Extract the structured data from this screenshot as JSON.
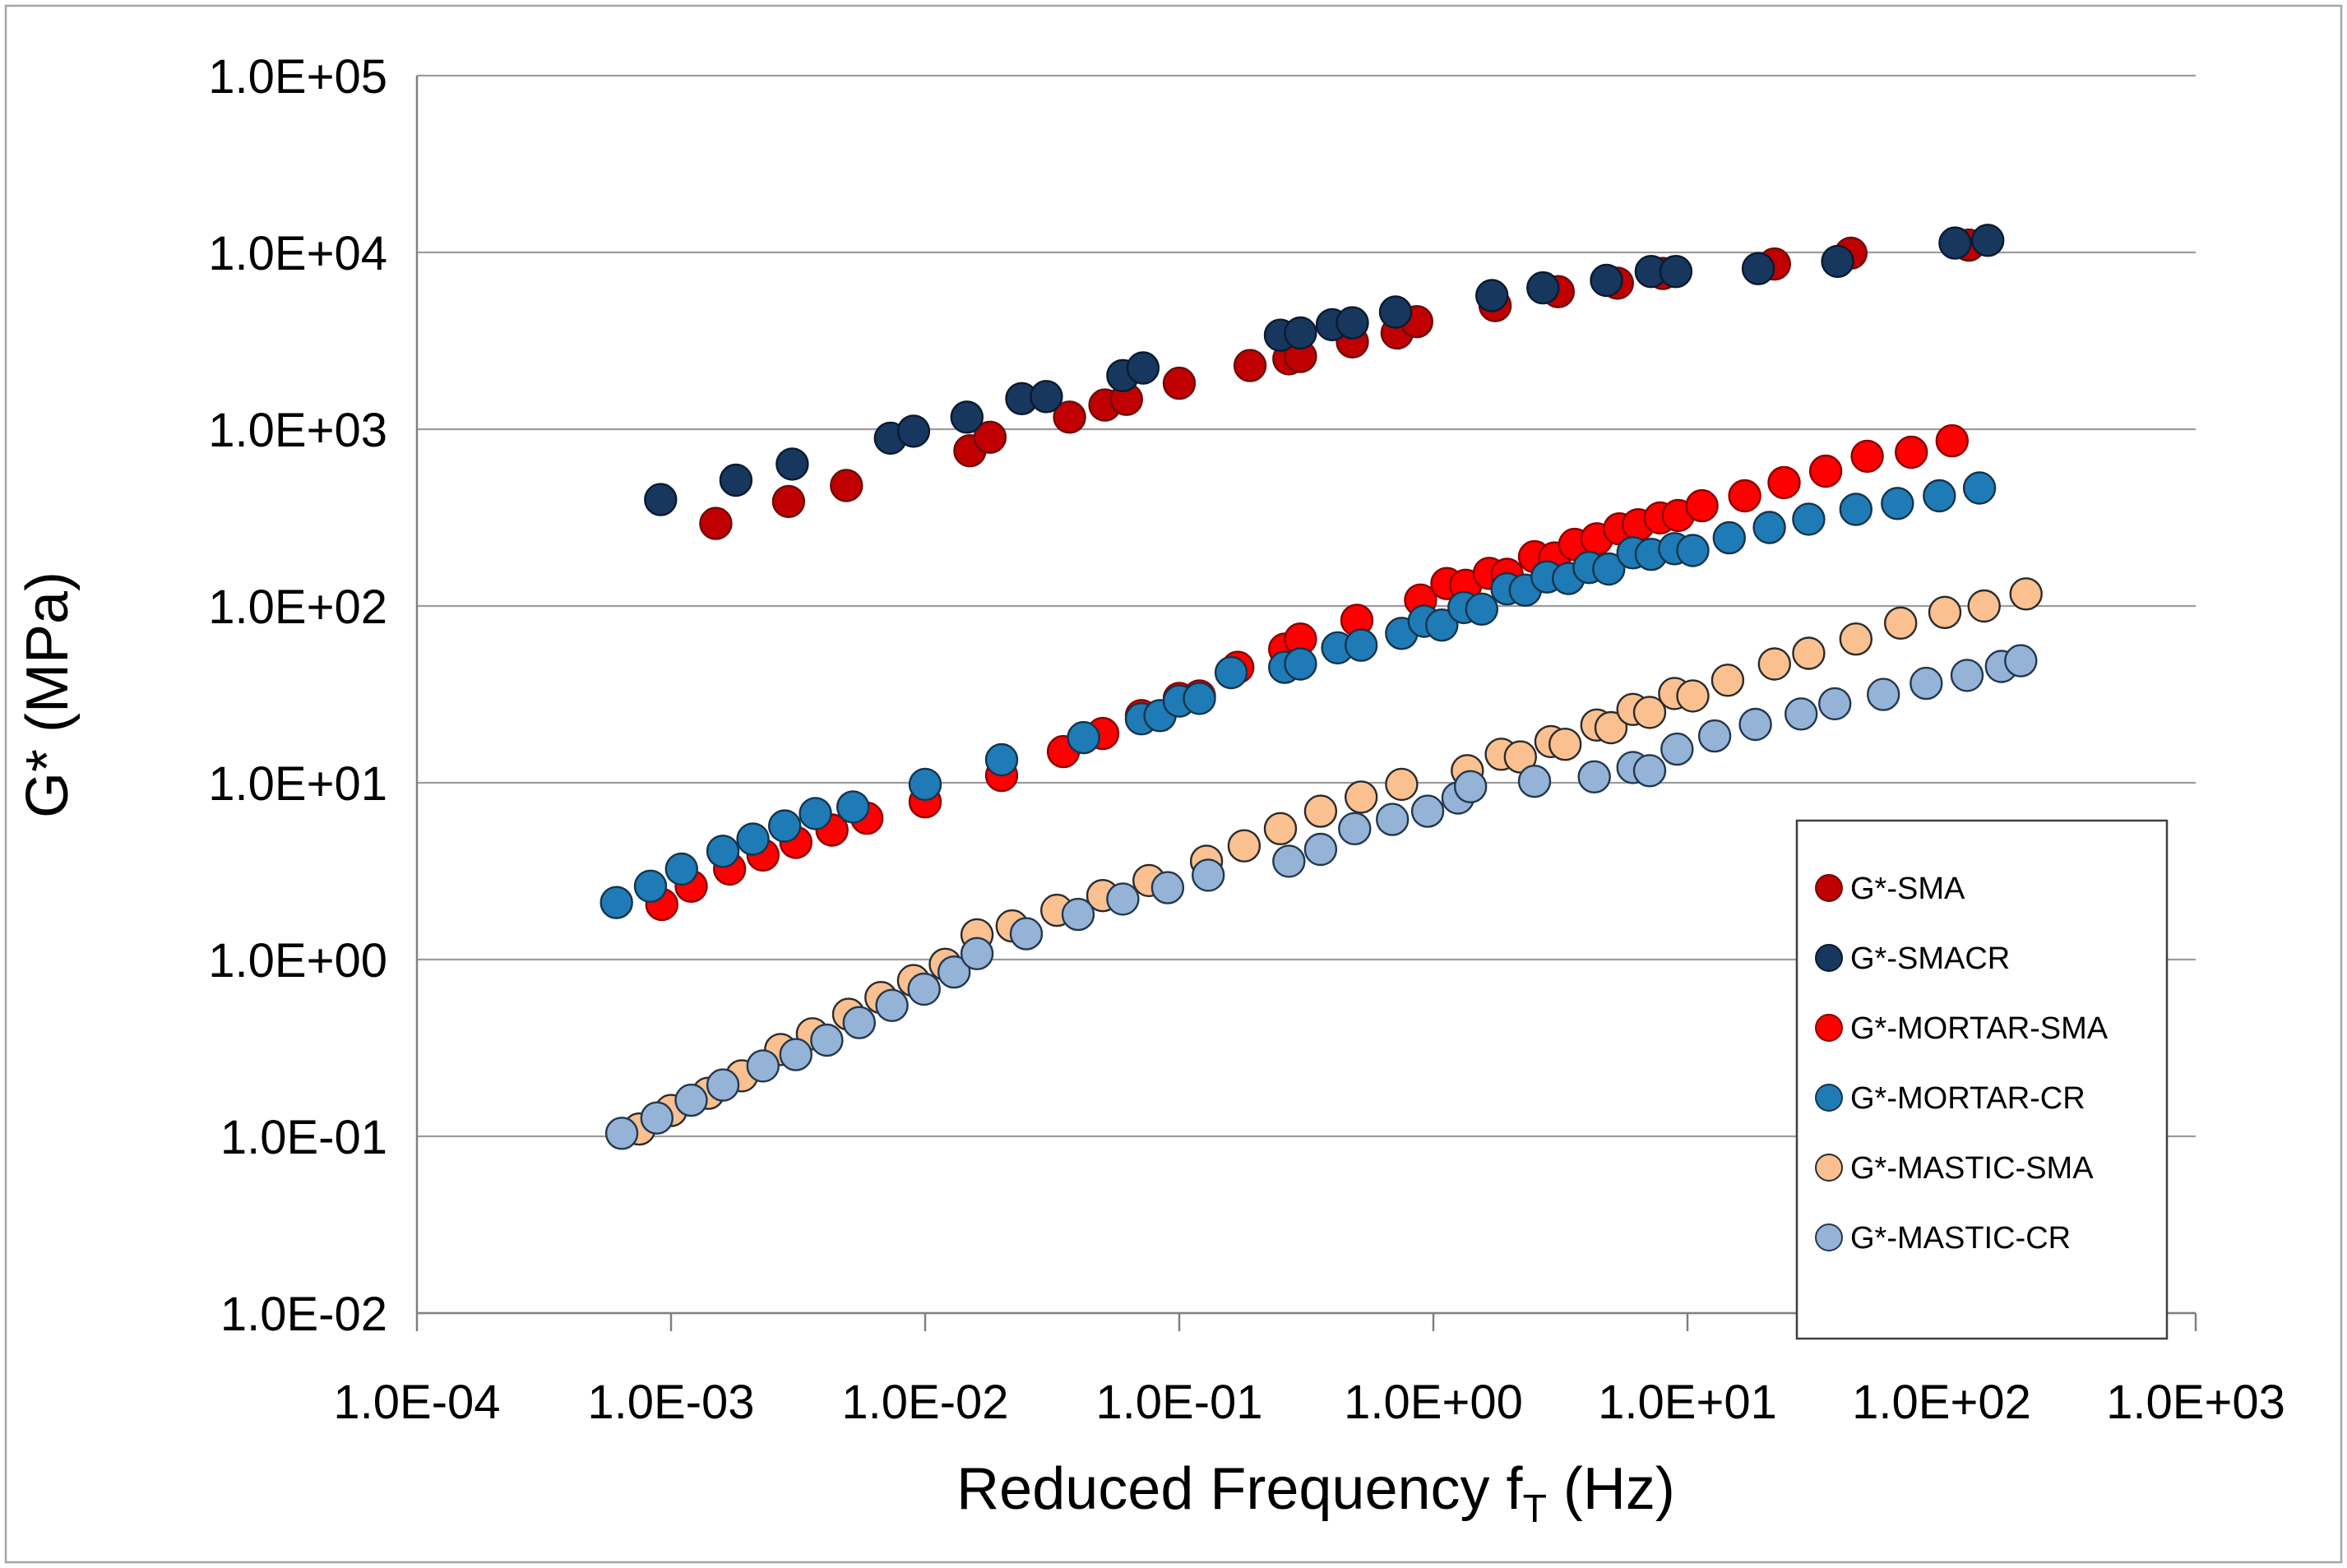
{
  "frame": {
    "border_color": "#A6A6A6",
    "background": "#FFFFFF"
  },
  "chart_data": {
    "type": "scatter",
    "title": "",
    "xlabel": "Reduced Frequency fT (Hz)",
    "xlabel_parts": {
      "pre": "Reduced Frequency f",
      "sub": "T",
      "post": " (Hz)"
    },
    "ylabel": "G* (MPa)",
    "x_axis": {
      "scale": "log",
      "min": 0.0001,
      "max": 1000,
      "tick_labels": [
        "1.0E-04",
        "1.0E-03",
        "1.0E-02",
        "1.0E-01",
        "1.0E+00",
        "1.0E+01",
        "1.0E+02",
        "1.0E+03"
      ],
      "tick_values": [
        0.0001,
        0.001,
        0.01,
        0.1,
        1,
        10,
        100,
        1000
      ]
    },
    "y_axis": {
      "scale": "log",
      "min": 0.01,
      "max": 100000,
      "tick_labels": [
        "1.0E+05",
        "1.0E+04",
        "1.0E+03",
        "1.0E+02",
        "1.0E+01",
        "1.0E+00",
        "1.0E-01",
        "1.0E-02"
      ],
      "tick_values": [
        100000,
        10000,
        1000,
        100,
        10,
        1,
        0.1,
        0.01
      ]
    },
    "grid": "horizontal-major",
    "gridline_color": "#9C9C9C",
    "axis_line_color": "#808080",
    "legend": {
      "position": "inside-right",
      "border_color": "#3F3F3F",
      "background": "#FFFFFF"
    },
    "series": [
      {
        "name": "G*-SMA",
        "fill": "#C00000",
        "stroke": "#6E0B0B",
        "points": [
          [
            0.0015,
            293
          ],
          [
            0.0029,
            390
          ],
          [
            0.0049,
            480
          ],
          [
            0.015,
            755
          ],
          [
            0.018,
            900
          ],
          [
            0.037,
            1170
          ],
          [
            0.051,
            1370
          ],
          [
            0.062,
            1475
          ],
          [
            0.1,
            1820
          ],
          [
            0.19,
            2290
          ],
          [
            0.27,
            2500
          ],
          [
            0.3,
            2580
          ],
          [
            0.48,
            3120
          ],
          [
            0.72,
            3500
          ],
          [
            0.86,
            4060
          ],
          [
            1.75,
            5000
          ],
          [
            3.1,
            6000
          ],
          [
            5.3,
            6700
          ],
          [
            8.0,
            7600
          ],
          [
            22,
            8600
          ],
          [
            44,
            9900
          ],
          [
            128,
            11000
          ]
        ]
      },
      {
        "name": "G*-SMACR",
        "fill": "#17375E",
        "stroke": "#0A1A2F",
        "points": [
          [
            0.00091,
            400
          ],
          [
            0.0018,
            515
          ],
          [
            0.003,
            635
          ],
          [
            0.0073,
            890
          ],
          [
            0.009,
            975
          ],
          [
            0.0146,
            1170
          ],
          [
            0.024,
            1490
          ],
          [
            0.03,
            1530
          ],
          [
            0.06,
            2010
          ],
          [
            0.072,
            2220
          ],
          [
            0.25,
            3400
          ],
          [
            0.3,
            3500
          ],
          [
            0.4,
            3900
          ],
          [
            0.48,
            4000
          ],
          [
            0.71,
            4600
          ],
          [
            1.7,
            5700
          ],
          [
            2.7,
            6300
          ],
          [
            4.8,
            6950
          ],
          [
            7.2,
            7800
          ],
          [
            9.0,
            7800
          ],
          [
            19,
            8100
          ],
          [
            39,
            8900
          ],
          [
            113,
            11300
          ],
          [
            152,
            11700
          ]
        ]
      },
      {
        "name": "G*-MORTAR-SMA",
        "fill": "#FE0000",
        "stroke": "#8B0000",
        "points": [
          [
            0.00092,
            2.05
          ],
          [
            0.0012,
            2.6
          ],
          [
            0.0017,
            3.25
          ],
          [
            0.0023,
            3.9
          ],
          [
            0.0031,
            4.6
          ],
          [
            0.0043,
            5.4
          ],
          [
            0.0059,
            6.3
          ],
          [
            0.01,
            7.8
          ],
          [
            0.02,
            11
          ],
          [
            0.035,
            15
          ],
          [
            0.05,
            19
          ],
          [
            0.071,
            24
          ],
          [
            0.1,
            30
          ],
          [
            0.12,
            31
          ],
          [
            0.17,
            45
          ],
          [
            0.26,
            57
          ],
          [
            0.3,
            65
          ],
          [
            0.5,
            83
          ],
          [
            0.89,
            108
          ],
          [
            1.13,
            134
          ],
          [
            1.34,
            131
          ],
          [
            1.66,
            153
          ],
          [
            1.95,
            151
          ],
          [
            2.5,
            190
          ],
          [
            3.0,
            187
          ],
          [
            3.6,
            223
          ],
          [
            4.4,
            240
          ],
          [
            5.4,
            273
          ],
          [
            6.4,
            288
          ],
          [
            7.8,
            315
          ],
          [
            9.2,
            325
          ],
          [
            11.4,
            369
          ],
          [
            16.8,
            420
          ],
          [
            24,
            499
          ],
          [
            35,
            579
          ],
          [
            51,
            703
          ],
          [
            76,
            741
          ],
          [
            110,
            860
          ]
        ]
      },
      {
        "name": "G*-MORTAR-CR",
        "fill": "#1F7BB5",
        "stroke": "#14344C",
        "points": [
          [
            0.00061,
            2.1
          ],
          [
            0.00083,
            2.6
          ],
          [
            0.0011,
            3.25
          ],
          [
            0.0016,
            4.1
          ],
          [
            0.0021,
            4.8
          ],
          [
            0.0028,
            5.7
          ],
          [
            0.0037,
            6.7
          ],
          [
            0.0052,
            7.3
          ],
          [
            0.01,
            9.8
          ],
          [
            0.02,
            13.5
          ],
          [
            0.042,
            18
          ],
          [
            0.071,
            23
          ],
          [
            0.084,
            24
          ],
          [
            0.1,
            29
          ],
          [
            0.12,
            30
          ],
          [
            0.16,
            42
          ],
          [
            0.26,
            45
          ],
          [
            0.3,
            47
          ],
          [
            0.42,
            58
          ],
          [
            0.52,
            60
          ],
          [
            0.75,
            70
          ],
          [
            0.92,
            82
          ],
          [
            1.08,
            78
          ],
          [
            1.32,
            98
          ],
          [
            1.55,
            96
          ],
          [
            1.95,
            125
          ],
          [
            2.3,
            123
          ],
          [
            2.8,
            146
          ],
          [
            3.4,
            143
          ],
          [
            4.1,
            165
          ],
          [
            4.9,
            162
          ],
          [
            6.1,
            200
          ],
          [
            7.2,
            196
          ],
          [
            8.9,
            211
          ],
          [
            10.5,
            206
          ],
          [
            14.6,
            243
          ],
          [
            21,
            278
          ],
          [
            30,
            310
          ],
          [
            46,
            352
          ],
          [
            67,
            380
          ],
          [
            98,
            420
          ],
          [
            141,
            465
          ]
        ]
      },
      {
        "name": "G*-MASTIC-SMA",
        "fill": "#FAC090",
        "stroke": "#2B2B2B",
        "points": [
          [
            0.00075,
            0.11
          ],
          [
            0.001,
            0.14
          ],
          [
            0.0014,
            0.175
          ],
          [
            0.0019,
            0.22
          ],
          [
            0.0027,
            0.31
          ],
          [
            0.0036,
            0.38
          ],
          [
            0.005,
            0.49
          ],
          [
            0.0067,
            0.61
          ],
          [
            0.009,
            0.76
          ],
          [
            0.012,
            0.94
          ],
          [
            0.016,
            1.38
          ],
          [
            0.022,
            1.55
          ],
          [
            0.033,
            1.9
          ],
          [
            0.05,
            2.3
          ],
          [
            0.076,
            2.8
          ],
          [
            0.128,
            3.6
          ],
          [
            0.18,
            4.4
          ],
          [
            0.25,
            5.5
          ],
          [
            0.36,
            6.9
          ],
          [
            0.52,
            8.3
          ],
          [
            0.75,
            9.8
          ],
          [
            1.36,
            11.7
          ],
          [
            1.85,
            14.5
          ],
          [
            2.2,
            14.0
          ],
          [
            2.9,
            17.1
          ],
          [
            3.3,
            16.5
          ],
          [
            4.4,
            21.2
          ],
          [
            5.0,
            20.5
          ],
          [
            6.1,
            26
          ],
          [
            7.1,
            25
          ],
          [
            8.9,
            32
          ],
          [
            10.5,
            31
          ],
          [
            14.4,
            38
          ],
          [
            22,
            47
          ],
          [
            30,
            54
          ],
          [
            46,
            65
          ],
          [
            69,
            80
          ],
          [
            103,
            92
          ],
          [
            147,
            100
          ],
          [
            215,
            117
          ]
        ]
      },
      {
        "name": "G*-MASTIC-CR",
        "fill": "#95B3D7",
        "stroke": "#22384F",
        "points": [
          [
            0.00064,
            0.104
          ],
          [
            0.00088,
            0.127
          ],
          [
            0.0012,
            0.16
          ],
          [
            0.0016,
            0.195
          ],
          [
            0.0023,
            0.25
          ],
          [
            0.0031,
            0.29
          ],
          [
            0.0041,
            0.35
          ],
          [
            0.0055,
            0.44
          ],
          [
            0.0074,
            0.55
          ],
          [
            0.0099,
            0.68
          ],
          [
            0.013,
            0.85
          ],
          [
            0.016,
            1.08
          ],
          [
            0.025,
            1.4
          ],
          [
            0.04,
            1.8
          ],
          [
            0.06,
            2.2
          ],
          [
            0.09,
            2.55
          ],
          [
            0.13,
            3.0
          ],
          [
            0.27,
            3.6
          ],
          [
            0.36,
            4.2
          ],
          [
            0.49,
            5.5
          ],
          [
            0.69,
            6.2
          ],
          [
            0.95,
            6.9
          ],
          [
            1.25,
            8.2
          ],
          [
            1.4,
            9.5
          ],
          [
            2.5,
            10.2
          ],
          [
            4.3,
            10.8
          ],
          [
            6.1,
            12.2
          ],
          [
            7.1,
            11.7
          ],
          [
            9.1,
            15.5
          ],
          [
            12.8,
            18.4
          ],
          [
            18.5,
            21.4
          ],
          [
            28,
            24.5
          ],
          [
            38,
            28
          ],
          [
            59,
            31.6
          ],
          [
            87,
            36.5
          ],
          [
            126,
            40.5
          ],
          [
            172,
            45.5
          ],
          [
            205,
            49
          ]
        ]
      }
    ]
  }
}
